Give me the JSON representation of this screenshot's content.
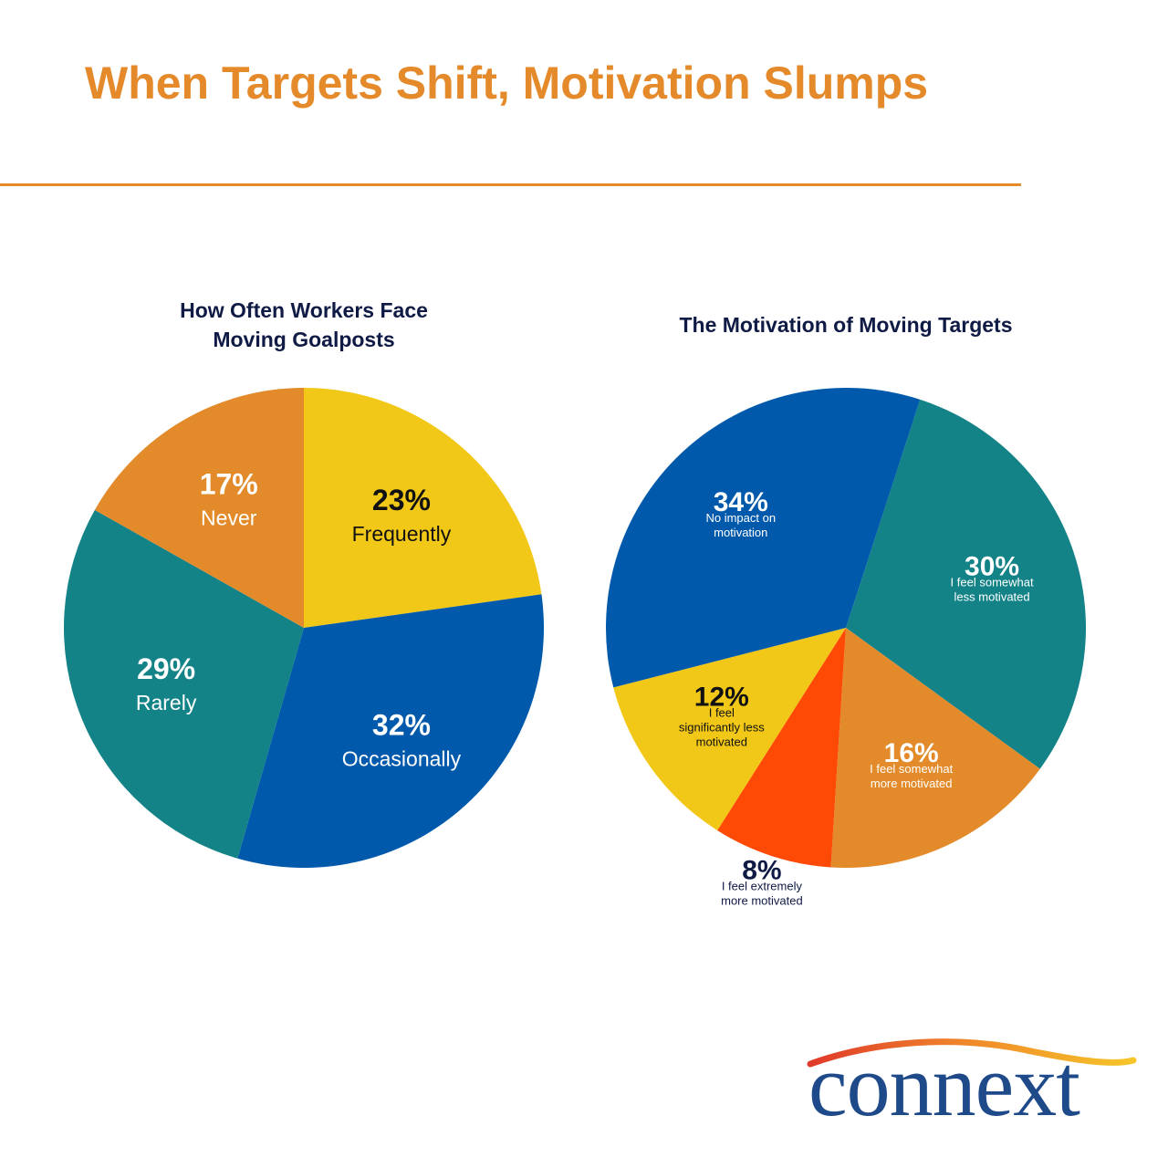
{
  "page": {
    "title": "When Targets Shift, Motivation Slumps",
    "title_color": "#E58A2A",
    "logo_text": "connext"
  },
  "chart_data": [
    {
      "type": "pie",
      "title": "How Often Workers Face Moving Goalposts",
      "title_lines": [
        "How Often Workers Face",
        "Moving Goalposts"
      ],
      "start_angle_deg": 0,
      "direction": "clockwise",
      "slices": [
        {
          "label": "Frequently",
          "value": 23,
          "display": "23%",
          "color": "#F2C818",
          "text_color": "#111111"
        },
        {
          "label": "Occasionally",
          "value": 32,
          "display": "32%",
          "color": "#0059AA",
          "text_color": "#FFFFFF"
        },
        {
          "label": "Rarely",
          "value": 29,
          "display": "29%",
          "color": "#148388",
          "text_color": "#FFFFFF"
        },
        {
          "label": "Never",
          "value": 17,
          "display": "17%",
          "color": "#E38B2B",
          "text_color": "#FFFFFF"
        }
      ]
    },
    {
      "type": "pie",
      "title": "The Motivation of Moving Targets",
      "title_lines": [
        "The Motivation of Moving Targets"
      ],
      "start_angle_deg": 18,
      "direction": "clockwise",
      "slices": [
        {
          "label": "I feel somewhat less motivated",
          "label_lines": [
            "I feel somewhat",
            "less motivated"
          ],
          "value": 30,
          "display": "30%",
          "color": "#148388",
          "text_color": "#FFFFFF"
        },
        {
          "label": "I feel somewhat more motivated",
          "label_lines": [
            "I feel somewhat",
            "more motivated"
          ],
          "value": 16,
          "display": "16%",
          "color": "#E38B2B",
          "text_color": "#FFFFFF"
        },
        {
          "label": "I feel extremely more motivated",
          "label_lines": [
            "I feel extremely",
            "more motivated"
          ],
          "value": 8,
          "display": "8%",
          "color": "#FF4A05",
          "text_color": "#0F1A45",
          "label_outside": true
        },
        {
          "label": "I feel significantly less motivated",
          "label_lines": [
            "I feel",
            "significantly less",
            "motivated"
          ],
          "value": 12,
          "display": "12%",
          "color": "#F2C818",
          "text_color": "#111111"
        },
        {
          "label": "No impact on motivation",
          "label_lines": [
            "No impact on",
            "motivation"
          ],
          "value": 34,
          "display": "34%",
          "color": "#0059AA",
          "text_color": "#FFFFFF"
        }
      ]
    }
  ]
}
